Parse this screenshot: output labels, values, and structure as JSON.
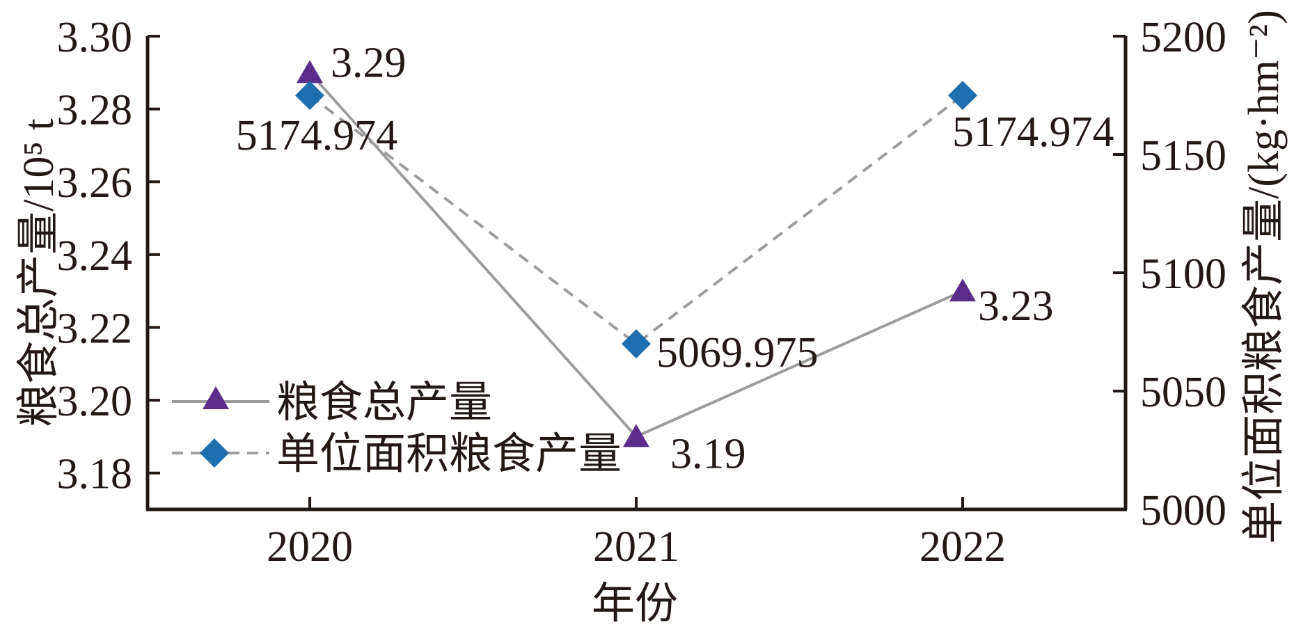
{
  "chart_data": {
    "type": "line",
    "title": "",
    "xlabel": "年份",
    "categories": [
      "2020",
      "2021",
      "2022"
    ],
    "left_axis": {
      "label": "粮食总产量/10⁵ t",
      "ticks": [
        3.18,
        3.2,
        3.22,
        3.24,
        3.26,
        3.28,
        3.3
      ],
      "tick_labels": [
        "3.18",
        "3.20",
        "3.22",
        "3.24",
        "3.26",
        "3.28",
        "3.30"
      ],
      "range": [
        3.17,
        3.3
      ]
    },
    "right_axis": {
      "label": "单位面积粮食产量/(kg·hm⁻²)",
      "ticks": [
        5000,
        5050,
        5100,
        5150,
        5200
      ],
      "tick_labels": [
        "5000",
        "5050",
        "5100",
        "5150",
        "5200"
      ],
      "range": [
        5000,
        5200
      ]
    },
    "series": [
      {
        "name": "粮食总产量",
        "axis": "left",
        "marker": "triangle",
        "marker_color": "#5B2C8A",
        "line_style": "solid",
        "line_color": "#9C9C9C",
        "values": [
          3.29,
          3.19,
          3.23
        ],
        "point_labels": [
          "3.29",
          "3.19",
          "3.23"
        ]
      },
      {
        "name": "单位面积粮食产量",
        "axis": "right",
        "marker": "diamond",
        "marker_color": "#1F6FAE",
        "line_style": "dashed",
        "line_color": "#9C9C9C",
        "values": [
          5174.974,
          5069.975,
          5174.974
        ],
        "point_labels": [
          "5174.974",
          "5069.975",
          "5174.974"
        ]
      }
    ],
    "legend": {
      "position": "inside-left-bottom"
    },
    "grid": "off",
    "ink_color": "#231815",
    "background": "#FFFFFF"
  }
}
